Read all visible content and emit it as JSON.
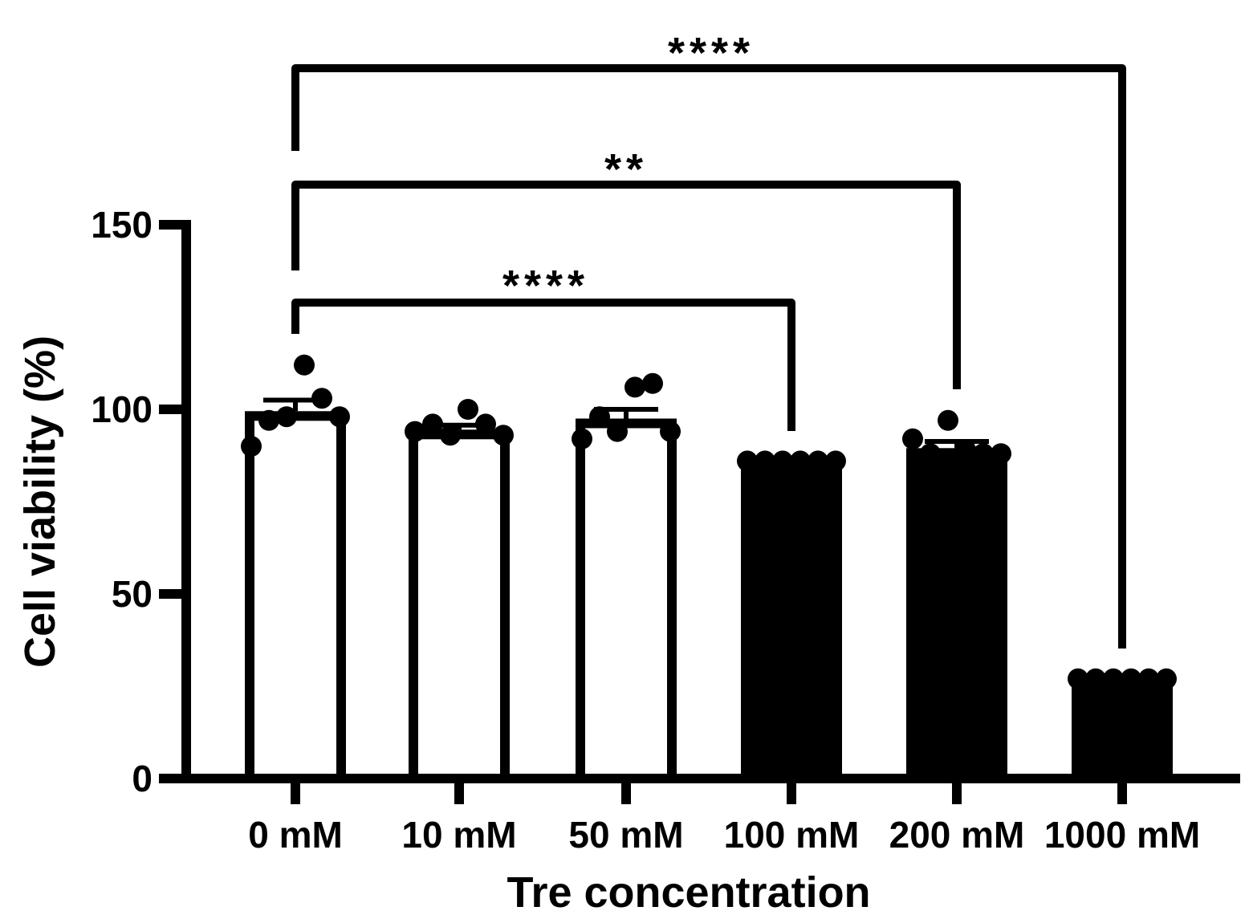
{
  "chart_data": {
    "type": "bar",
    "title": "",
    "xlabel": "Tre concentration",
    "ylabel": "Cell viability (%)",
    "ylim": [
      0,
      150
    ],
    "yticks": [
      0,
      50,
      100,
      150
    ],
    "categories": [
      "0 mM",
      "10 mM",
      "50 mM",
      "100 mM",
      "200 mM",
      "1000 mM"
    ],
    "values": [
      99.5,
      94.5,
      97.5,
      85.5,
      89.5,
      27
    ],
    "errors": [
      3.0,
      1.2,
      2.5,
      0.3,
      1.8,
      0.3
    ],
    "fills": [
      "white",
      "white",
      "white",
      "black",
      "black",
      "black"
    ],
    "points": [
      [
        90,
        97,
        98,
        112,
        103,
        98
      ],
      [
        94,
        96,
        93,
        100,
        96,
        93
      ],
      [
        92,
        98,
        94,
        106,
        107,
        94
      ],
      [
        86,
        86,
        86,
        86,
        86,
        86
      ],
      [
        92,
        88,
        97,
        89,
        88,
        88
      ],
      [
        27,
        27,
        27,
        27,
        27,
        27
      ]
    ],
    "significance": [
      {
        "from": "0 mM",
        "to": "1000 mM",
        "label": "****"
      },
      {
        "from": "0 mM",
        "to": "200 mM",
        "label": "**"
      },
      {
        "from": "0 mM",
        "to": "100 mM",
        "label": "****"
      }
    ],
    "colors": {
      "ink": "#000000",
      "background": "#ffffff"
    }
  }
}
